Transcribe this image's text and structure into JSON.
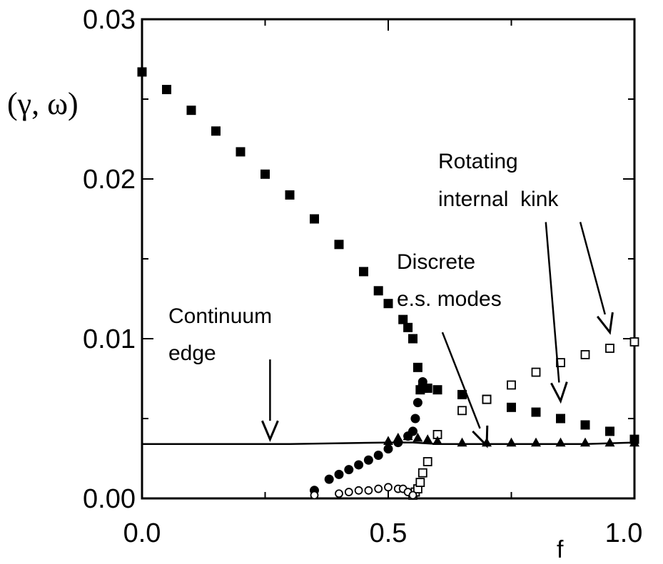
{
  "chart_data": {
    "type": "scatter",
    "ylabel": "(γ, ω)",
    "xlabel": "f",
    "xlim": [
      0.0,
      1.0
    ],
    "ylim": [
      0.0,
      0.03
    ],
    "x_tick_labels": [
      "0.0",
      "0.5",
      "1.0"
    ],
    "y_tick_labels": [
      "0.00",
      "0.01",
      "0.02",
      "0.03"
    ],
    "grid": false,
    "series": [
      {
        "marker": "filled-square",
        "x": [
          0.0,
          0.05,
          0.1,
          0.15,
          0.2,
          0.25,
          0.3,
          0.35,
          0.4,
          0.45,
          0.48,
          0.5,
          0.53,
          0.54,
          0.55,
          0.56,
          0.565,
          0.57,
          0.58,
          0.6,
          0.65,
          0.7,
          0.75,
          0.8,
          0.85,
          0.9,
          0.95,
          1.0
        ],
        "y": [
          0.0267,
          0.0256,
          0.0243,
          0.023,
          0.0217,
          0.0203,
          0.019,
          0.0175,
          0.0159,
          0.0142,
          0.013,
          0.0122,
          0.0112,
          0.0107,
          0.01,
          0.0082,
          0.0068,
          0.0069,
          0.0069,
          0.0068,
          0.0065,
          0.0062,
          0.0057,
          0.0054,
          0.005,
          0.0046,
          0.0042,
          0.0037
        ]
      },
      {
        "marker": "open-square",
        "x": [
          0.55,
          0.555,
          0.56,
          0.565,
          0.57,
          0.58,
          0.6,
          0.65,
          0.7,
          0.75,
          0.8,
          0.85,
          0.9,
          0.95,
          1.0
        ],
        "y": [
          0.0002,
          0.0004,
          0.0006,
          0.001,
          0.0016,
          0.0023,
          0.004,
          0.0055,
          0.0062,
          0.0071,
          0.0079,
          0.0085,
          0.009,
          0.0094,
          0.0098
        ]
      },
      {
        "marker": "filled-circle",
        "x": [
          0.35,
          0.38,
          0.4,
          0.42,
          0.44,
          0.46,
          0.48,
          0.5,
          0.52,
          0.54,
          0.55,
          0.555,
          0.56,
          0.57
        ],
        "y": [
          0.0005,
          0.0012,
          0.0015,
          0.0018,
          0.0021,
          0.0024,
          0.0027,
          0.0031,
          0.0035,
          0.0039,
          0.0042,
          0.005,
          0.006,
          0.0073
        ]
      },
      {
        "marker": "open-circle",
        "x": [
          0.35,
          0.4,
          0.42,
          0.44,
          0.46,
          0.48,
          0.5,
          0.52,
          0.53,
          0.54,
          0.55
        ],
        "y": [
          0.0002,
          0.0003,
          0.0004,
          0.0005,
          0.0005,
          0.0006,
          0.0007,
          0.0006,
          0.0006,
          0.0004,
          0.0002
        ]
      },
      {
        "marker": "filled-triangle",
        "x": [
          0.5,
          0.52,
          0.54,
          0.56,
          0.58,
          0.6,
          0.65,
          0.7,
          0.75,
          0.8,
          0.85,
          0.9,
          0.95,
          1.0
        ],
        "y": [
          0.0036,
          0.0038,
          0.0039,
          0.0038,
          0.0037,
          0.0036,
          0.0035,
          0.0035,
          0.0035,
          0.0035,
          0.0035,
          0.0035,
          0.0035,
          0.0035
        ]
      }
    ],
    "continuum_line": {
      "x": [
        0.0,
        0.2,
        0.3,
        0.5,
        0.55,
        0.6,
        0.7,
        0.8,
        0.9,
        1.0
      ],
      "y": [
        0.0034,
        0.0034,
        0.0034,
        0.0035,
        0.0035,
        0.0034,
        0.0034,
        0.0034,
        0.0034,
        0.0035
      ]
    },
    "annotations": [
      {
        "lines": [
          "Continuum",
          "edge"
        ]
      },
      {
        "lines": [
          "Discrete",
          "e.s. modes"
        ]
      },
      {
        "lines": [
          "Rotating",
          "internal  kink"
        ]
      }
    ],
    "arrows": [
      {
        "from": [
          0.26,
          0.0087
        ],
        "to": [
          0.26,
          0.0037
        ]
      },
      {
        "from": [
          0.61,
          0.0104
        ],
        "to": [
          0.7,
          0.0033
        ]
      },
      {
        "from": [
          0.82,
          0.0173
        ],
        "to": [
          0.85,
          0.0061
        ]
      },
      {
        "from": [
          0.89,
          0.0173
        ],
        "to": [
          0.95,
          0.0104
        ]
      }
    ]
  }
}
